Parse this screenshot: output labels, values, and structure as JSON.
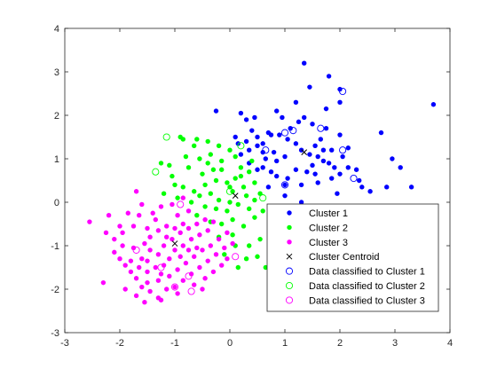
{
  "chart_data": {
    "type": "scatter",
    "title": "",
    "xlabel": "",
    "ylabel": "",
    "xlim": [
      -3,
      4
    ],
    "ylim": [
      -3,
      4
    ],
    "xticks": [
      "-3",
      "-2",
      "-1",
      "0",
      "1",
      "2",
      "3",
      "4"
    ],
    "yticks": [
      "-3",
      "-2",
      "-1",
      "0",
      "1",
      "2",
      "3",
      "4"
    ],
    "grid": false,
    "legend_position": "lower-right",
    "colors": {
      "cluster1": "#0000ff",
      "cluster2": "#00ff00",
      "cluster3": "#ff00ff",
      "centroid": "#000000",
      "axes": "#262626"
    },
    "series": [
      {
        "name": "Cluster 1",
        "marker": "filled-circle",
        "color": "#0000ff",
        "points": [
          [
            1.0,
            0.4
          ],
          [
            1.3,
            0.4
          ],
          [
            1.6,
            0.45
          ],
          [
            1.85,
            0.55
          ],
          [
            2.0,
            0.65
          ],
          [
            2.35,
            0.5
          ],
          [
            2.4,
            0.35
          ],
          [
            2.55,
            0.25
          ],
          [
            3.3,
            0.35
          ],
          [
            2.85,
            0.35
          ],
          [
            2.3,
            0.75
          ],
          [
            2.15,
            0.8
          ],
          [
            1.9,
            0.8
          ],
          [
            1.8,
            0.9
          ],
          [
            1.7,
            0.95
          ],
          [
            1.5,
            0.85
          ],
          [
            1.4,
            0.7
          ],
          [
            1.2,
            0.75
          ],
          [
            1.05,
            0.55
          ],
          [
            0.85,
            0.6
          ],
          [
            0.75,
            0.7
          ],
          [
            0.85,
            0.95
          ],
          [
            1.0,
            1.05
          ],
          [
            0.8,
            1.15
          ],
          [
            0.65,
            1.0
          ],
          [
            0.6,
            0.8
          ],
          [
            0.5,
            0.75
          ],
          [
            0.35,
            0.9
          ],
          [
            0.6,
            1.35
          ],
          [
            0.75,
            1.55
          ],
          [
            0.9,
            1.55
          ],
          [
            1.05,
            1.45
          ],
          [
            1.2,
            1.35
          ],
          [
            1.3,
            1.2
          ],
          [
            1.45,
            1.1
          ],
          [
            1.55,
            1.3
          ],
          [
            1.7,
            1.2
          ],
          [
            1.6,
            1.05
          ],
          [
            1.85,
            1.2
          ],
          [
            2.05,
            1.05
          ],
          [
            2.15,
            1.25
          ],
          [
            2.0,
            1.55
          ],
          [
            1.75,
            1.7
          ],
          [
            1.5,
            1.8
          ],
          [
            1.25,
            1.85
          ],
          [
            1.1,
            1.7
          ],
          [
            0.95,
            1.95
          ],
          [
            0.85,
            2.1
          ],
          [
            1.35,
            1.95
          ],
          [
            0.7,
            1.6
          ],
          [
            0.5,
            1.5
          ],
          [
            0.3,
            1.4
          ],
          [
            0.5,
            1.3
          ],
          [
            0.35,
            1.2
          ],
          [
            0.2,
            1.1
          ],
          [
            0.15,
            1.35
          ],
          [
            0.1,
            1.5
          ],
          [
            0.4,
            1.65
          ],
          [
            0.3,
            1.9
          ],
          [
            0.45,
            1.95
          ],
          [
            0.2,
            2.05
          ],
          [
            -0.25,
            2.1
          ],
          [
            0.7,
            0.35
          ],
          [
            1.55,
            0.65
          ],
          [
            1.95,
            0.2
          ],
          [
            1.3,
            0.0
          ],
          [
            1.45,
            2.65
          ],
          [
            1.35,
            3.2
          ],
          [
            1.8,
            2.9
          ],
          [
            2.0,
            2.6
          ],
          [
            2.0,
            2.3
          ],
          [
            2.75,
            1.6
          ],
          [
            2.95,
            1.0
          ],
          [
            3.1,
            0.8
          ],
          [
            3.7,
            2.25
          ],
          [
            1.2,
            2.3
          ],
          [
            1.75,
            2.15
          ],
          [
            1.65,
            1.45
          ],
          [
            1.0,
            0.15
          ],
          [
            0.6,
            1.15
          ]
        ]
      },
      {
        "name": "Cluster 2",
        "marker": "filled-circle",
        "color": "#00ff00",
        "points": [
          [
            -0.85,
            1.45
          ],
          [
            -0.65,
            1.3
          ],
          [
            -0.4,
            1.4
          ],
          [
            -0.35,
            1.1
          ],
          [
            -0.55,
            1.0
          ],
          [
            -0.8,
            1.05
          ],
          [
            -0.75,
            0.8
          ],
          [
            -0.5,
            0.65
          ],
          [
            -0.3,
            0.75
          ],
          [
            -0.15,
            0.95
          ],
          [
            0.0,
            1.2
          ],
          [
            0.1,
            1.05
          ],
          [
            0.2,
            0.8
          ],
          [
            0.35,
            0.7
          ],
          [
            0.1,
            0.55
          ],
          [
            -0.05,
            0.45
          ],
          [
            -0.25,
            0.5
          ],
          [
            -0.45,
            0.4
          ],
          [
            -0.65,
            0.25
          ],
          [
            -0.85,
            0.35
          ],
          [
            -1.0,
            0.4
          ],
          [
            -1.05,
            0.6
          ],
          [
            -1.2,
            0.2
          ],
          [
            -0.95,
            0.1
          ],
          [
            -0.7,
            0.0
          ],
          [
            -0.55,
            0.15
          ],
          [
            -0.35,
            0.2
          ],
          [
            -0.2,
            0.05
          ],
          [
            0.05,
            0.25
          ],
          [
            0.25,
            0.35
          ],
          [
            0.3,
            0.15
          ],
          [
            0.45,
            0.45
          ],
          [
            0.45,
            0.05
          ],
          [
            0.35,
            -0.15
          ],
          [
            0.15,
            -0.05
          ],
          [
            -0.05,
            -0.2
          ],
          [
            -0.25,
            -0.15
          ],
          [
            -0.45,
            -0.1
          ],
          [
            -0.6,
            -0.3
          ],
          [
            -0.35,
            -0.45
          ],
          [
            -0.15,
            -0.5
          ],
          [
            0.05,
            -0.4
          ],
          [
            0.25,
            -0.55
          ],
          [
            0.45,
            -0.35
          ],
          [
            0.6,
            -0.2
          ],
          [
            0.55,
            0.2
          ],
          [
            0.05,
            -0.75
          ],
          [
            -0.2,
            -0.8
          ],
          [
            0.1,
            -1.0
          ],
          [
            0.35,
            -1.0
          ],
          [
            0.55,
            -0.85
          ],
          [
            0.5,
            -1.25
          ],
          [
            0.3,
            -1.3
          ],
          [
            0.65,
            -1.5
          ],
          [
            0.8,
            -1.5
          ],
          [
            0.15,
            -1.5
          ],
          [
            -0.1,
            -1.2
          ],
          [
            0.2,
            0.6
          ],
          [
            -0.15,
            0.75
          ],
          [
            0.4,
            0.95
          ],
          [
            -0.4,
            0.9
          ],
          [
            -0.9,
            1.5
          ],
          [
            -0.6,
            1.45
          ],
          [
            -0.2,
            1.3
          ],
          [
            -1.1,
            0.85
          ],
          [
            -1.25,
            0.9
          ],
          [
            0.0,
            0.0
          ],
          [
            0.0,
            0.35
          ]
        ]
      },
      {
        "name": "Cluster 3",
        "marker": "filled-circle",
        "color": "#ff00ff",
        "points": [
          [
            -2.55,
            -0.45
          ],
          [
            -2.25,
            -0.7
          ],
          [
            -2.1,
            -0.85
          ],
          [
            -2.0,
            -0.55
          ],
          [
            -1.85,
            -0.25
          ],
          [
            -1.65,
            -0.3
          ],
          [
            -1.7,
            0.25
          ],
          [
            -1.5,
            -0.6
          ],
          [
            -1.45,
            -0.8
          ],
          [
            -1.55,
            -0.95
          ],
          [
            -1.75,
            -1.05
          ],
          [
            -1.95,
            -1.0
          ],
          [
            -2.1,
            -1.15
          ],
          [
            -2.0,
            -1.3
          ],
          [
            -1.8,
            -1.35
          ],
          [
            -1.6,
            -1.3
          ],
          [
            -1.45,
            -1.1
          ],
          [
            -1.3,
            -1.2
          ],
          [
            -1.2,
            -1.0
          ],
          [
            -1.05,
            -0.85
          ],
          [
            -0.9,
            -0.7
          ],
          [
            -0.75,
            -0.6
          ],
          [
            -0.6,
            -0.5
          ],
          [
            -0.45,
            -0.4
          ],
          [
            -0.3,
            -0.45
          ],
          [
            -0.4,
            -0.65
          ],
          [
            -0.55,
            -0.75
          ],
          [
            -0.7,
            -0.85
          ],
          [
            -0.85,
            -1.0
          ],
          [
            -1.0,
            -1.1
          ],
          [
            -1.1,
            -1.3
          ],
          [
            -1.2,
            -1.45
          ],
          [
            -1.35,
            -1.5
          ],
          [
            -1.5,
            -1.6
          ],
          [
            -1.65,
            -1.5
          ],
          [
            -1.8,
            -1.6
          ],
          [
            -1.7,
            -1.75
          ],
          [
            -1.5,
            -1.85
          ],
          [
            -1.3,
            -1.8
          ],
          [
            -1.1,
            -1.7
          ],
          [
            -0.95,
            -1.55
          ],
          [
            -0.8,
            -1.4
          ],
          [
            -0.65,
            -1.25
          ],
          [
            -0.5,
            -1.1
          ],
          [
            -0.35,
            -1.0
          ],
          [
            -0.2,
            -0.85
          ],
          [
            -0.05,
            -0.7
          ],
          [
            -0.1,
            -1.05
          ],
          [
            -0.25,
            -1.2
          ],
          [
            -0.4,
            -1.35
          ],
          [
            -0.55,
            -1.5
          ],
          [
            -0.7,
            -1.65
          ],
          [
            -0.85,
            -1.8
          ],
          [
            -1.0,
            -1.95
          ],
          [
            -1.15,
            -2.0
          ],
          [
            -1.3,
            -2.2
          ],
          [
            -1.45,
            -2.05
          ],
          [
            -1.6,
            -1.95
          ],
          [
            -1.35,
            -0.4
          ],
          [
            -1.15,
            -0.55
          ],
          [
            -0.95,
            -0.3
          ],
          [
            -0.75,
            -0.2
          ],
          [
            -1.25,
            -0.1
          ],
          [
            -1.05,
            -0.05
          ],
          [
            -0.85,
            0.1
          ],
          [
            -1.4,
            -0.25
          ],
          [
            -1.6,
            -0.05
          ],
          [
            -2.3,
            -1.85
          ],
          [
            -1.9,
            -2.0
          ],
          [
            -1.7,
            -2.15
          ],
          [
            -1.25,
            -2.25
          ],
          [
            -0.65,
            -1.9
          ],
          [
            -0.45,
            -1.75
          ],
          [
            -0.3,
            -1.6
          ],
          [
            -0.15,
            -1.45
          ],
          [
            -0.05,
            -1.3
          ],
          [
            0.05,
            -0.95
          ],
          [
            -1.95,
            -0.7
          ],
          [
            -1.75,
            -0.55
          ],
          [
            -1.3,
            -0.65
          ],
          [
            -1.5,
            -1.35
          ],
          [
            -1.9,
            -1.45
          ],
          [
            -0.9,
            -1.25
          ],
          [
            -0.6,
            -1.05
          ],
          [
            -1.0,
            -0.6
          ],
          [
            -1.15,
            -0.8
          ],
          [
            -0.85,
            -0.5
          ],
          [
            -1.25,
            -1.65
          ],
          [
            -0.75,
            -1.1
          ],
          [
            -2.2,
            -0.3
          ],
          [
            -1.55,
            -2.3
          ],
          [
            -0.5,
            -2.0
          ],
          [
            -0.95,
            -2.1
          ]
        ]
      },
      {
        "name": "Cluster Centroid",
        "marker": "x",
        "color": "#000000",
        "points": [
          [
            1.35,
            1.15
          ],
          [
            0.1,
            0.15
          ],
          [
            -1.0,
            -0.95
          ]
        ]
      },
      {
        "name": "Data classified to Cluster 1",
        "marker": "open-circle",
        "color": "#0000ff",
        "points": [
          [
            2.05,
            2.55
          ],
          [
            1.0,
            1.6
          ],
          [
            1.15,
            1.65
          ],
          [
            1.65,
            1.7
          ],
          [
            2.05,
            1.2
          ],
          [
            0.65,
            1.2
          ],
          [
            1.0,
            0.4
          ],
          [
            2.25,
            0.55
          ]
        ]
      },
      {
        "name": "Data classified to Cluster 2",
        "marker": "open-circle",
        "color": "#00ff00",
        "points": [
          [
            -1.15,
            1.5
          ],
          [
            -1.35,
            0.7
          ],
          [
            0.2,
            1.3
          ],
          [
            0.0,
            0.25
          ],
          [
            0.6,
            0.1
          ]
        ]
      },
      {
        "name": "Data classified to Cluster 3",
        "marker": "open-circle",
        "color": "#ff00ff",
        "points": [
          [
            -1.7,
            -1.1
          ],
          [
            -1.25,
            -1.5
          ],
          [
            -1.0,
            -1.95
          ],
          [
            -0.9,
            -0.05
          ],
          [
            -0.75,
            -1.7
          ],
          [
            -0.7,
            -2.05
          ],
          [
            0.1,
            -1.25
          ]
        ]
      }
    ]
  }
}
